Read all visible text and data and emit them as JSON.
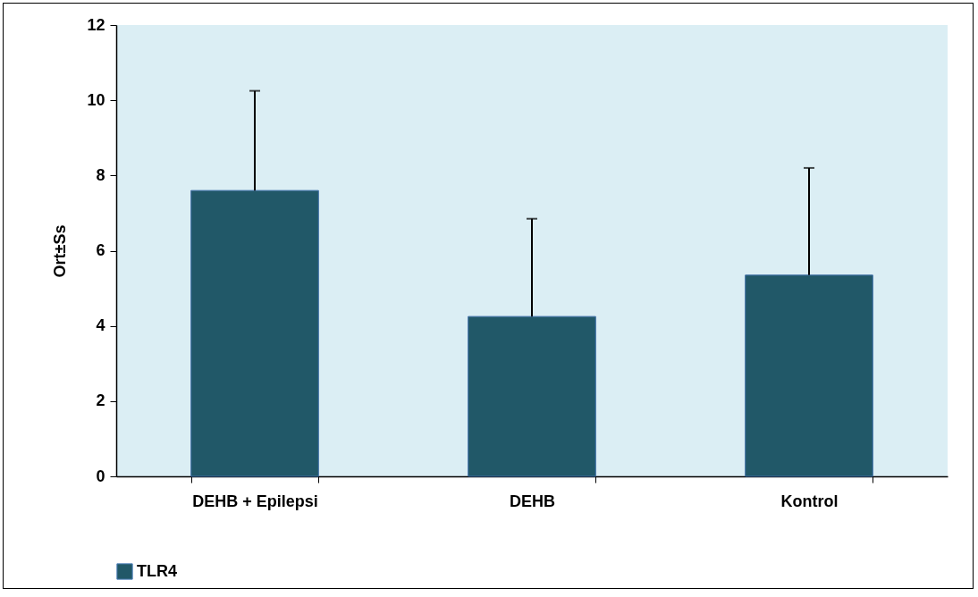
{
  "chart_data": {
    "type": "bar",
    "ylabel": "Ort±Ss",
    "categories": [
      "DEHB + Epilepsi",
      "DEHB",
      "Kontrol"
    ],
    "series": [
      {
        "name": "TLR4",
        "color": "#215868",
        "values": [
          7.6,
          4.25,
          5.35
        ],
        "errors": [
          [
            7.6,
            10.25
          ],
          [
            4.25,
            6.85
          ],
          [
            5.35,
            8.2
          ]
        ]
      }
    ],
    "ylim": [
      0,
      12
    ],
    "yticks": [
      0,
      2,
      4,
      6,
      8,
      10,
      12
    ],
    "grid": false,
    "legend": "bottom"
  }
}
